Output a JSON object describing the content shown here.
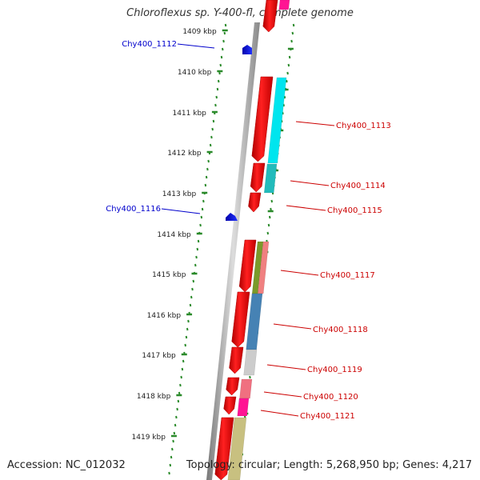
{
  "title": "Chloroflexus sp. Y-400-fl, complete genome",
  "footer": {
    "accession": "Accession: NC_012032",
    "summary": "Topology: circular; Length: 5,268,950 bp; Genes: 4,217"
  },
  "ruler_labels": [
    "1409 kbp",
    "1410 kbp",
    "1411 kbp",
    "1412 kbp",
    "1413 kbp",
    "1414 kbp",
    "1415 kbp",
    "1416 kbp",
    "1417 kbp",
    "1418 kbp",
    "1419 kbp"
  ],
  "genes_left": [
    {
      "label": "Chy400_1112",
      "color": "#0000cc"
    },
    {
      "label": "Chy400_1116",
      "color": "#0000cc"
    }
  ],
  "genes_right": [
    {
      "label": "Chy400_1113",
      "color": "#cc0000"
    },
    {
      "label": "Chy400_1114",
      "color": "#cc0000"
    },
    {
      "label": "Chy400_1115",
      "color": "#cc0000"
    },
    {
      "label": "Chy400_1117",
      "color": "#cc0000"
    },
    {
      "label": "Chy400_1118",
      "color": "#cc0000"
    },
    {
      "label": "Chy400_1119",
      "color": "#cc0000"
    },
    {
      "label": "Chy400_1120",
      "color": "#cc0000"
    },
    {
      "label": "Chy400_1121",
      "color": "#cc0000"
    }
  ],
  "colors": {
    "cds": "#ee0000",
    "backbone": "#999999",
    "ruler_ticks": "#2a8a2a",
    "cog_cyan": "#00e5ee",
    "cog_teal": "#22bbbb",
    "cog_olive": "#7a9a2a",
    "cog_salmon": "#f08080",
    "cog_steelblue": "#4682b4",
    "cog_lightgray": "#cccccc",
    "cog_pink": "#f07080",
    "cog_magenta": "#ff1493",
    "cog_khaki": "#c8c080",
    "forward_strand": "#0000ee"
  }
}
